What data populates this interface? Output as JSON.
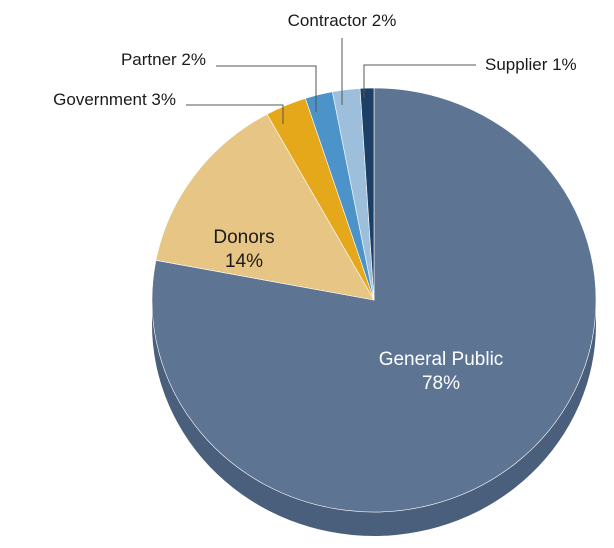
{
  "chart_data": {
    "type": "pie",
    "style": "3d-tilted",
    "title": "",
    "slices": [
      {
        "name": "General Public",
        "value": 78,
        "label": "78%",
        "color": "#5d7493",
        "side_color": "#4a5f7c",
        "label_placement": "inside",
        "label_color": "#ffffff"
      },
      {
        "name": "Donors",
        "value": 14,
        "label": "14%",
        "color": "#e7c685",
        "side_color": "#c8a866",
        "label_placement": "inside",
        "label_color": "#1a1a1a"
      },
      {
        "name": "Government",
        "value": 3,
        "label": "3%",
        "color": "#e5a81b",
        "side_color": "#c08a10",
        "label_placement": "outside"
      },
      {
        "name": "Partner",
        "value": 2,
        "label": "2%",
        "color": "#4b93c8",
        "side_color": "#3a78a6",
        "label_placement": "outside"
      },
      {
        "name": "Contractor",
        "value": 2,
        "label": "2%",
        "color": "#9dbfdc",
        "side_color": "#7ea2c2",
        "label_placement": "outside"
      },
      {
        "name": "Supplier",
        "value": 1,
        "label": "1%",
        "color": "#1c3f66",
        "side_color": "#142f4d",
        "label_placement": "outside"
      }
    ]
  }
}
